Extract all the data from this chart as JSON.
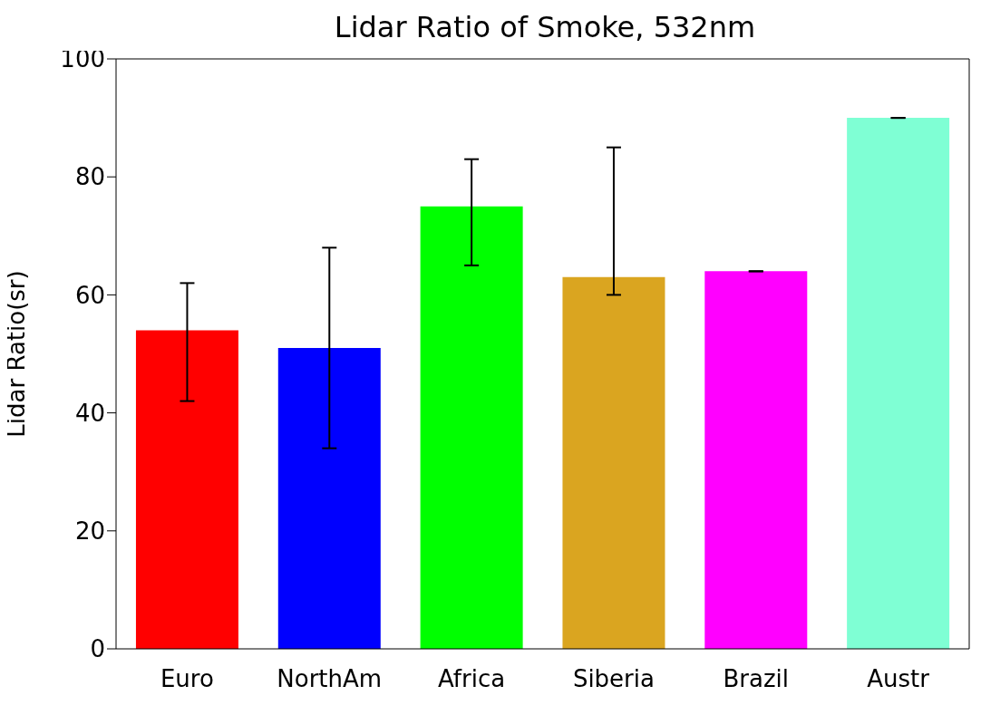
{
  "chart_data": {
    "type": "bar",
    "title": "Lidar Ratio of Smoke, 532nm",
    "ylabel": "Lidar Ratio(sr)",
    "categories": [
      "Euro",
      "NorthAm",
      "Africa",
      "Siberia",
      "Brazil",
      "Austr"
    ],
    "values": [
      54,
      51,
      75,
      63,
      64,
      90
    ],
    "colors": [
      "#ff0000",
      "#0000ff",
      "#00ff00",
      "#daa520",
      "#ff00ff",
      "#7fffd4"
    ],
    "errors": [
      [
        42,
        62
      ],
      [
        34,
        68
      ],
      [
        65,
        83
      ],
      [
        60,
        85
      ],
      [
        64,
        64
      ],
      [
        90,
        90
      ]
    ],
    "ylim": [
      0,
      100
    ],
    "yticks": [
      0,
      20,
      40,
      60,
      80,
      100
    ],
    "grid": false,
    "legend": false
  }
}
